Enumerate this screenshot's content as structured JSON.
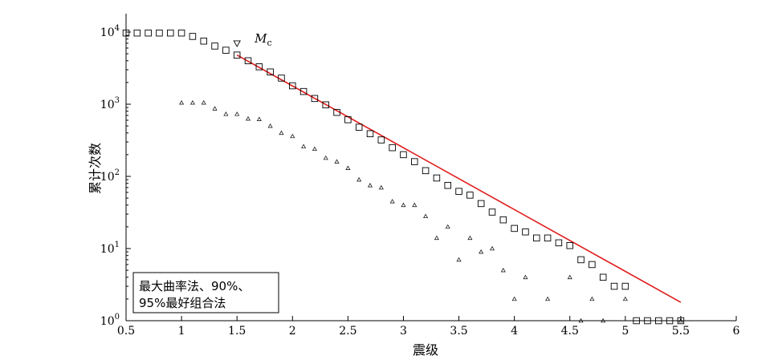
{
  "chart_data": {
    "type": "scatter",
    "xlabel": "震级",
    "ylabel": "累计次数",
    "x_scale": "linear",
    "y_scale": "log",
    "xlim": [
      0.5,
      6
    ],
    "ylim": [
      1,
      18000
    ],
    "x_ticks": [
      0.5,
      1,
      1.5,
      2,
      2.5,
      3,
      3.5,
      4,
      4.5,
      5,
      5.5,
      6
    ],
    "x_tick_labels": [
      "0.5",
      "1",
      "1.5",
      "2",
      "2.5",
      "3",
      "3.5",
      "4",
      "4.5",
      "5",
      "5.5",
      "6"
    ],
    "y_ticks": [
      1,
      10,
      100,
      1000,
      10000
    ],
    "y_tick_labels": [
      {
        "base": "10",
        "exp": "0"
      },
      {
        "base": "10",
        "exp": "1"
      },
      {
        "base": "10",
        "exp": "2"
      },
      {
        "base": "10",
        "exp": "3"
      },
      {
        "base": "10",
        "exp": "4"
      }
    ],
    "grid": false,
    "series": [
      {
        "marker": "square",
        "x": [
          0.5,
          0.6,
          0.7,
          0.8,
          0.9,
          1.0,
          1.1,
          1.2,
          1.3,
          1.4,
          1.5,
          1.6,
          1.7,
          1.8,
          1.9,
          2.0,
          2.1,
          2.2,
          2.3,
          2.4,
          2.5,
          2.6,
          2.7,
          2.8,
          2.9,
          3.0,
          3.1,
          3.2,
          3.3,
          3.4,
          3.5,
          3.6,
          3.7,
          3.8,
          3.9,
          4.0,
          4.1,
          4.2,
          4.3,
          4.4,
          4.5,
          4.6,
          4.7,
          4.8,
          4.9,
          5.0,
          5.1,
          5.2,
          5.3,
          5.4,
          5.5
        ],
        "y": [
          9700,
          9700,
          9700,
          9700,
          9700,
          9700,
          8700,
          7500,
          6400,
          5600,
          4800,
          4000,
          3300,
          2800,
          2300,
          1800,
          1500,
          1200,
          980,
          770,
          610,
          480,
          390,
          320,
          250,
          200,
          160,
          120,
          95,
          75,
          62,
          55,
          42,
          32,
          25,
          19,
          17,
          14,
          14,
          12,
          11,
          7,
          6,
          4,
          3,
          3,
          1,
          1,
          1,
          1,
          1
        ]
      },
      {
        "marker": "triangle",
        "x": [
          1.0,
          1.1,
          1.2,
          1.3,
          1.4,
          1.5,
          1.6,
          1.7,
          1.8,
          1.9,
          2.0,
          2.1,
          2.2,
          2.3,
          2.4,
          2.5,
          2.6,
          2.7,
          2.8,
          2.9,
          3.0,
          3.1,
          3.2,
          3.3,
          3.4,
          3.5,
          3.6,
          3.7,
          3.8,
          3.9,
          4.0,
          4.1,
          4.3,
          4.5,
          4.6,
          4.7,
          4.8,
          5.0,
          5.5
        ],
        "y": [
          1050,
          1050,
          1050,
          870,
          730,
          730,
          630,
          620,
          500,
          400,
          360,
          260,
          240,
          180,
          160,
          130,
          90,
          75,
          70,
          45,
          40,
          40,
          28,
          14,
          20,
          7,
          14,
          9,
          10,
          5,
          2,
          4,
          2,
          4,
          1,
          2,
          1,
          2,
          1
        ]
      },
      {
        "marker": "line",
        "x": [
          1.5,
          5.5
        ],
        "y": [
          4800,
          1.8
        ]
      }
    ],
    "annotations": [
      {
        "text": "M",
        "subscript": "c",
        "x": 1.5,
        "y": 7000
      }
    ],
    "legend_text": [
      "最大曲率法、90%、",
      "95%最好组合法"
    ]
  }
}
